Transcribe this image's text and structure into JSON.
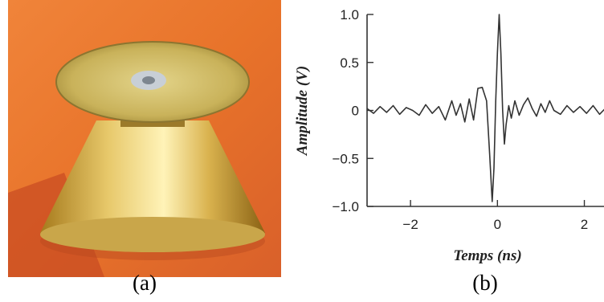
{
  "panels": {
    "left_label": "(a)",
    "right_label": "(b)"
  },
  "chart_data": {
    "type": "line",
    "xlabel": "Temps (ns)",
    "ylabel": "Amplitude (V)",
    "xlim": [
      -3,
      2.6
    ],
    "ylim": [
      -1.0,
      1.0
    ],
    "xticks": [
      -2,
      0,
      2
    ],
    "xtick_labels": [
      "−2",
      "0",
      "2"
    ],
    "yticks": [
      1.0,
      0.5,
      0,
      -0.5,
      -1.0
    ],
    "ytick_labels": [
      "1.0",
      "0.5",
      "0",
      "−0.5",
      "−1.0"
    ],
    "grid": false,
    "series": [
      {
        "color": "#333333",
        "x": [
          -3.0,
          -2.85,
          -2.7,
          -2.55,
          -2.4,
          -2.25,
          -2.1,
          -1.95,
          -1.8,
          -1.65,
          -1.5,
          -1.35,
          -1.2,
          -1.05,
          -0.95,
          -0.85,
          -0.75,
          -0.65,
          -0.55,
          -0.45,
          -0.35,
          -0.25,
          -0.18,
          -0.12,
          -0.08,
          -0.04,
          0.0,
          0.04,
          0.08,
          0.12,
          0.16,
          0.2,
          0.26,
          0.32,
          0.4,
          0.5,
          0.6,
          0.7,
          0.8,
          0.9,
          1.0,
          1.1,
          1.2,
          1.3,
          1.45,
          1.6,
          1.75,
          1.9,
          2.05,
          2.2,
          2.35,
          2.5,
          2.6
        ],
        "y": [
          0.02,
          -0.03,
          0.04,
          -0.02,
          0.05,
          -0.04,
          0.03,
          0.0,
          -0.05,
          0.06,
          -0.03,
          0.04,
          -0.1,
          0.1,
          -0.05,
          0.07,
          -0.12,
          0.12,
          -0.1,
          0.23,
          0.24,
          0.1,
          -0.45,
          -0.95,
          -0.6,
          0.1,
          0.6,
          1.0,
          0.6,
          0.0,
          -0.35,
          -0.15,
          0.05,
          -0.08,
          0.1,
          -0.05,
          0.06,
          0.13,
          0.02,
          -0.06,
          0.07,
          -0.02,
          0.1,
          0.0,
          -0.04,
          0.05,
          -0.02,
          0.04,
          -0.03,
          0.05,
          -0.04,
          0.03,
          0.01
        ]
      }
    ]
  }
}
